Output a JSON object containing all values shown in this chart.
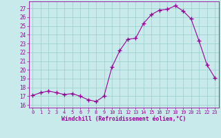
{
  "hours": [
    0,
    1,
    2,
    3,
    4,
    5,
    6,
    7,
    8,
    9,
    10,
    11,
    12,
    13,
    14,
    15,
    16,
    17,
    18,
    19,
    20,
    21,
    22,
    23
  ],
  "values": [
    17.1,
    17.4,
    17.6,
    17.4,
    17.2,
    17.3,
    17.0,
    16.6,
    16.4,
    17.0,
    20.3,
    22.2,
    23.5,
    23.6,
    25.3,
    26.3,
    26.8,
    26.9,
    27.3,
    26.7,
    25.8,
    23.3,
    20.6,
    19.1
  ],
  "line_color": "#990099",
  "marker": "+",
  "bg_color": "#c8eaea",
  "grid_color": "#99cccc",
  "xlabel": "Windchill (Refroidissement éolien,°C)",
  "ylabel_ticks": [
    16,
    17,
    18,
    19,
    20,
    21,
    22,
    23,
    24,
    25,
    26,
    27
  ],
  "ylim": [
    15.7,
    27.8
  ],
  "xlim": [
    -0.5,
    23.5
  ],
  "tick_color": "#990099",
  "xlabel_color": "#990099",
  "spine_color": "#990099"
}
